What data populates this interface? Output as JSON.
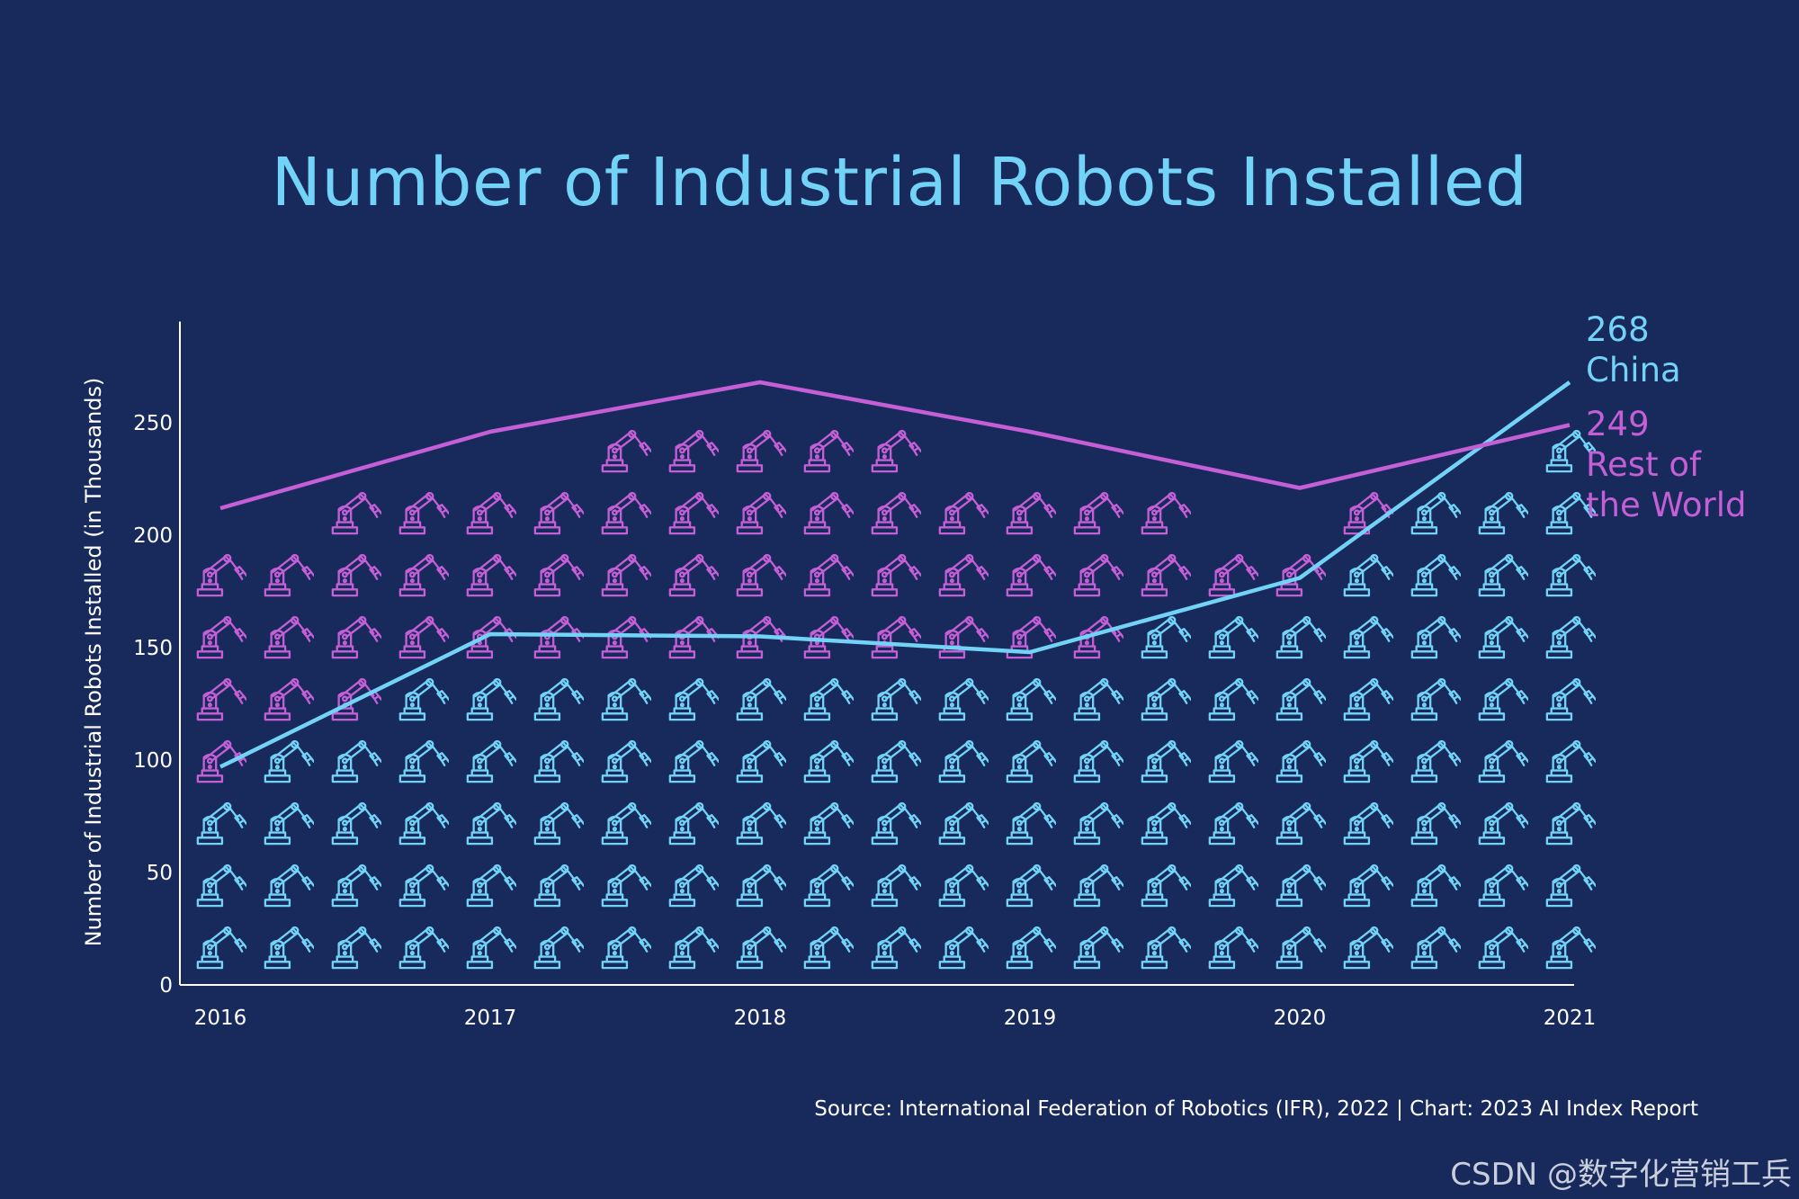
{
  "chart_data": {
    "type": "line",
    "title": "Number of Industrial Robots Installed",
    "xlabel": "",
    "ylabel": "Number of Industrial Robots Installed (in Thousands)",
    "x": [
      "2016",
      "2017",
      "2018",
      "2019",
      "2020",
      "2021"
    ],
    "yticks": [
      "0",
      "50",
      "100",
      "150",
      "200",
      "250"
    ],
    "ylim": [
      0,
      295
    ],
    "series": [
      {
        "name": "China",
        "values": [
          97,
          156,
          155,
          148,
          181,
          268
        ],
        "color": "#73d3f7",
        "end_value": "268",
        "end_name": "China"
      },
      {
        "name": "Rest of the World",
        "values": [
          212,
          246,
          268,
          246,
          221,
          249
        ],
        "color": "#c45fd6",
        "end_value": "249",
        "end_name_line1": "Rest of",
        "end_name_line2": "the World"
      }
    ],
    "source": "Source: International Federation of Robotics (IFR), 2022 | Chart: 2023 AI Index Report"
  },
  "watermark": "CSDN @数字化营销工兵"
}
